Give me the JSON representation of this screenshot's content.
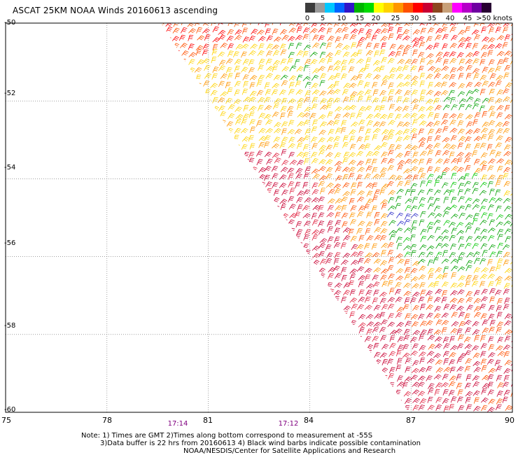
{
  "title": "ASCAT 25KM NOAA Winds 20160613 ascending",
  "colorbar": {
    "colors": [
      "#3c3c3c",
      "#9a9a9a",
      "#00c8ff",
      "#0064ff",
      "#3214c8",
      "#00b400",
      "#00dc00",
      "#ffff00",
      "#ffd200",
      "#ff9600",
      "#ff5000",
      "#ff0000",
      "#c80032",
      "#8c461e",
      "#c8a078",
      "#ff00ff",
      "#b400c8",
      "#6e00a0",
      "#280032"
    ],
    "labels": [
      "0",
      "5",
      "10",
      "15",
      "20",
      "25",
      "30",
      "35",
      "40",
      "45",
      ">50 knots"
    ]
  },
  "map": {
    "lat_labels": [
      "-50",
      "-52",
      "-54",
      "-56",
      "-58",
      "-60"
    ],
    "lon_labels": [
      "75",
      "78",
      "81",
      "84",
      "87",
      "90"
    ],
    "time_labels": [
      "17:14",
      "17:12"
    ]
  },
  "chart_data": {
    "type": "wind-barb-map",
    "title": "ASCAT 25KM NOAA Winds 20160613 ascending",
    "lat_range": [
      -60,
      -50
    ],
    "lon_range": [
      75,
      90
    ],
    "speed_bins_knots": [
      0,
      5,
      10,
      15,
      20,
      25,
      30,
      35,
      40,
      45,
      50
    ],
    "regions": [
      {
        "speed_knots": 22,
        "color": "#ffd200",
        "lat": [
          -52.5,
          -50.5
        ],
        "lon": [
          81,
          86
        ]
      },
      {
        "speed_knots": 28,
        "color": "#ff9600",
        "lat": [
          -57.5,
          -50
        ],
        "lon": [
          82,
          90
        ]
      },
      {
        "speed_knots": 33,
        "color": "#c80032",
        "lat": [
          -60,
          -54
        ],
        "lon": [
          80,
          87
        ]
      },
      {
        "speed_knots": 18,
        "color": "#00b400",
        "lat": [
          -57,
          -54
        ],
        "lon": [
          86,
          90
        ]
      },
      {
        "speed_knots": 12,
        "color": "#3214c8",
        "lat": [
          -55.5,
          -55
        ],
        "lon": [
          85.5,
          86
        ]
      }
    ],
    "grid": true
  },
  "notes": {
    "line1": "Note: 1) Times are GMT 2)Times along bottom correspond to measurement at -55S",
    "line2": "3)Data buffer is 22 hrs from 20160613 4) Black wind barbs indicate possible contamination",
    "line3": "NOAA/NESDIS/Center for Satellite Applications and Research"
  }
}
